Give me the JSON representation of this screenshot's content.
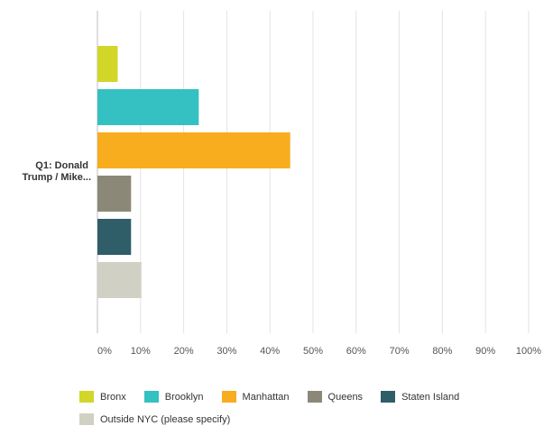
{
  "chart_data": {
    "type": "bar",
    "orientation": "horizontal",
    "categories": [
      "Q1: Donald Trump / Mike..."
    ],
    "category_label_lines": [
      "Q1: Donald",
      "Trump / Mike..."
    ],
    "series": [
      {
        "name": "Bronx",
        "values": [
          4.7
        ],
        "color": "#d2d629"
      },
      {
        "name": "Brooklyn",
        "values": [
          23.5
        ],
        "color": "#35c0c2"
      },
      {
        "name": "Manhattan",
        "values": [
          44.7
        ],
        "color": "#f7ad1e"
      },
      {
        "name": "Queens",
        "values": [
          7.8
        ],
        "color": "#8b8878"
      },
      {
        "name": "Staten Island",
        "values": [
          7.8
        ],
        "color": "#2f5e69"
      },
      {
        "name": "Outside NYC (please specify)",
        "values": [
          10.2
        ],
        "color": "#d1d0c4"
      }
    ],
    "xlim": [
      0,
      100
    ],
    "x_ticks": [
      "0%",
      "10%",
      "20%",
      "30%",
      "40%",
      "50%",
      "60%",
      "70%",
      "80%",
      "90%",
      "100%"
    ],
    "grid": true,
    "legend_position": "bottom",
    "title": "",
    "xlabel": "",
    "ylabel": ""
  }
}
